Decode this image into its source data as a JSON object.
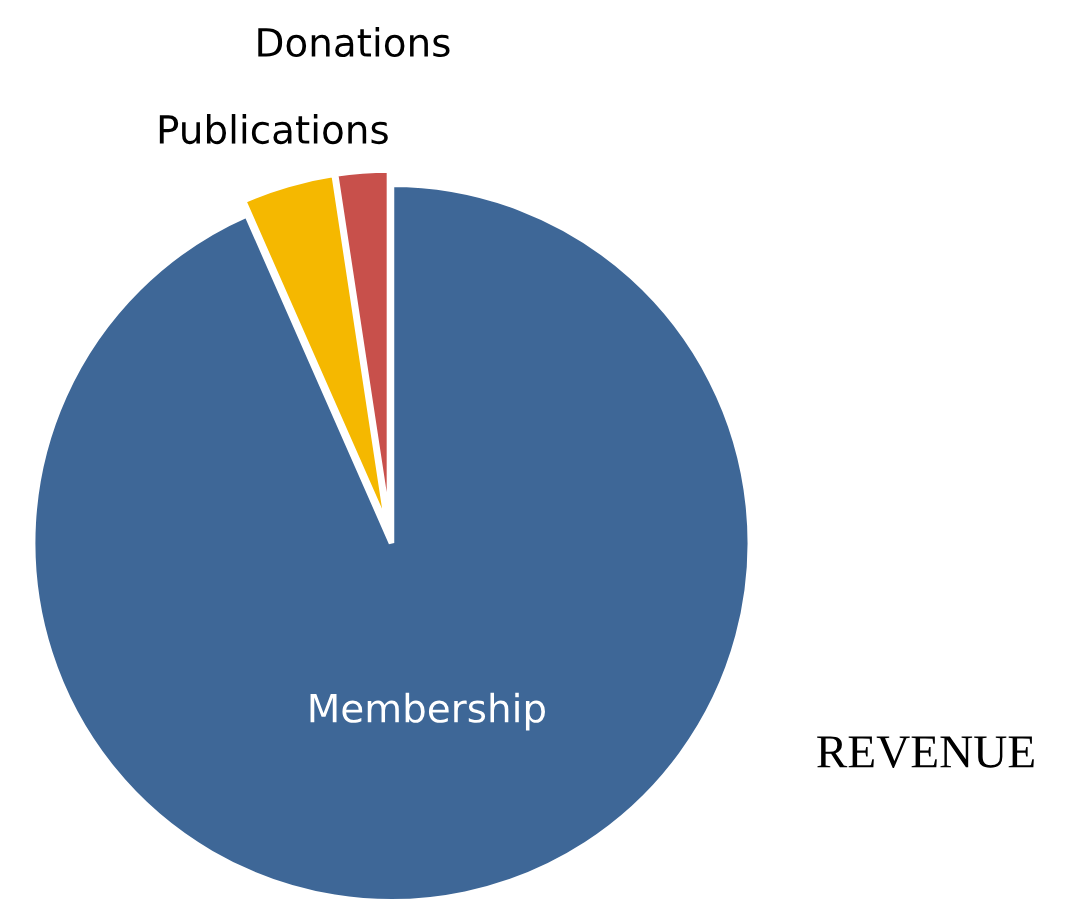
{
  "chart_data": {
    "type": "pie",
    "title": "REVENUE",
    "categories": [
      "Donations",
      "Publications",
      "Membership"
    ],
    "values": [
      2.4,
      4.2,
      93.4
    ],
    "colors": [
      "#c8504b",
      "#f5b800",
      "#3e6797"
    ]
  }
}
